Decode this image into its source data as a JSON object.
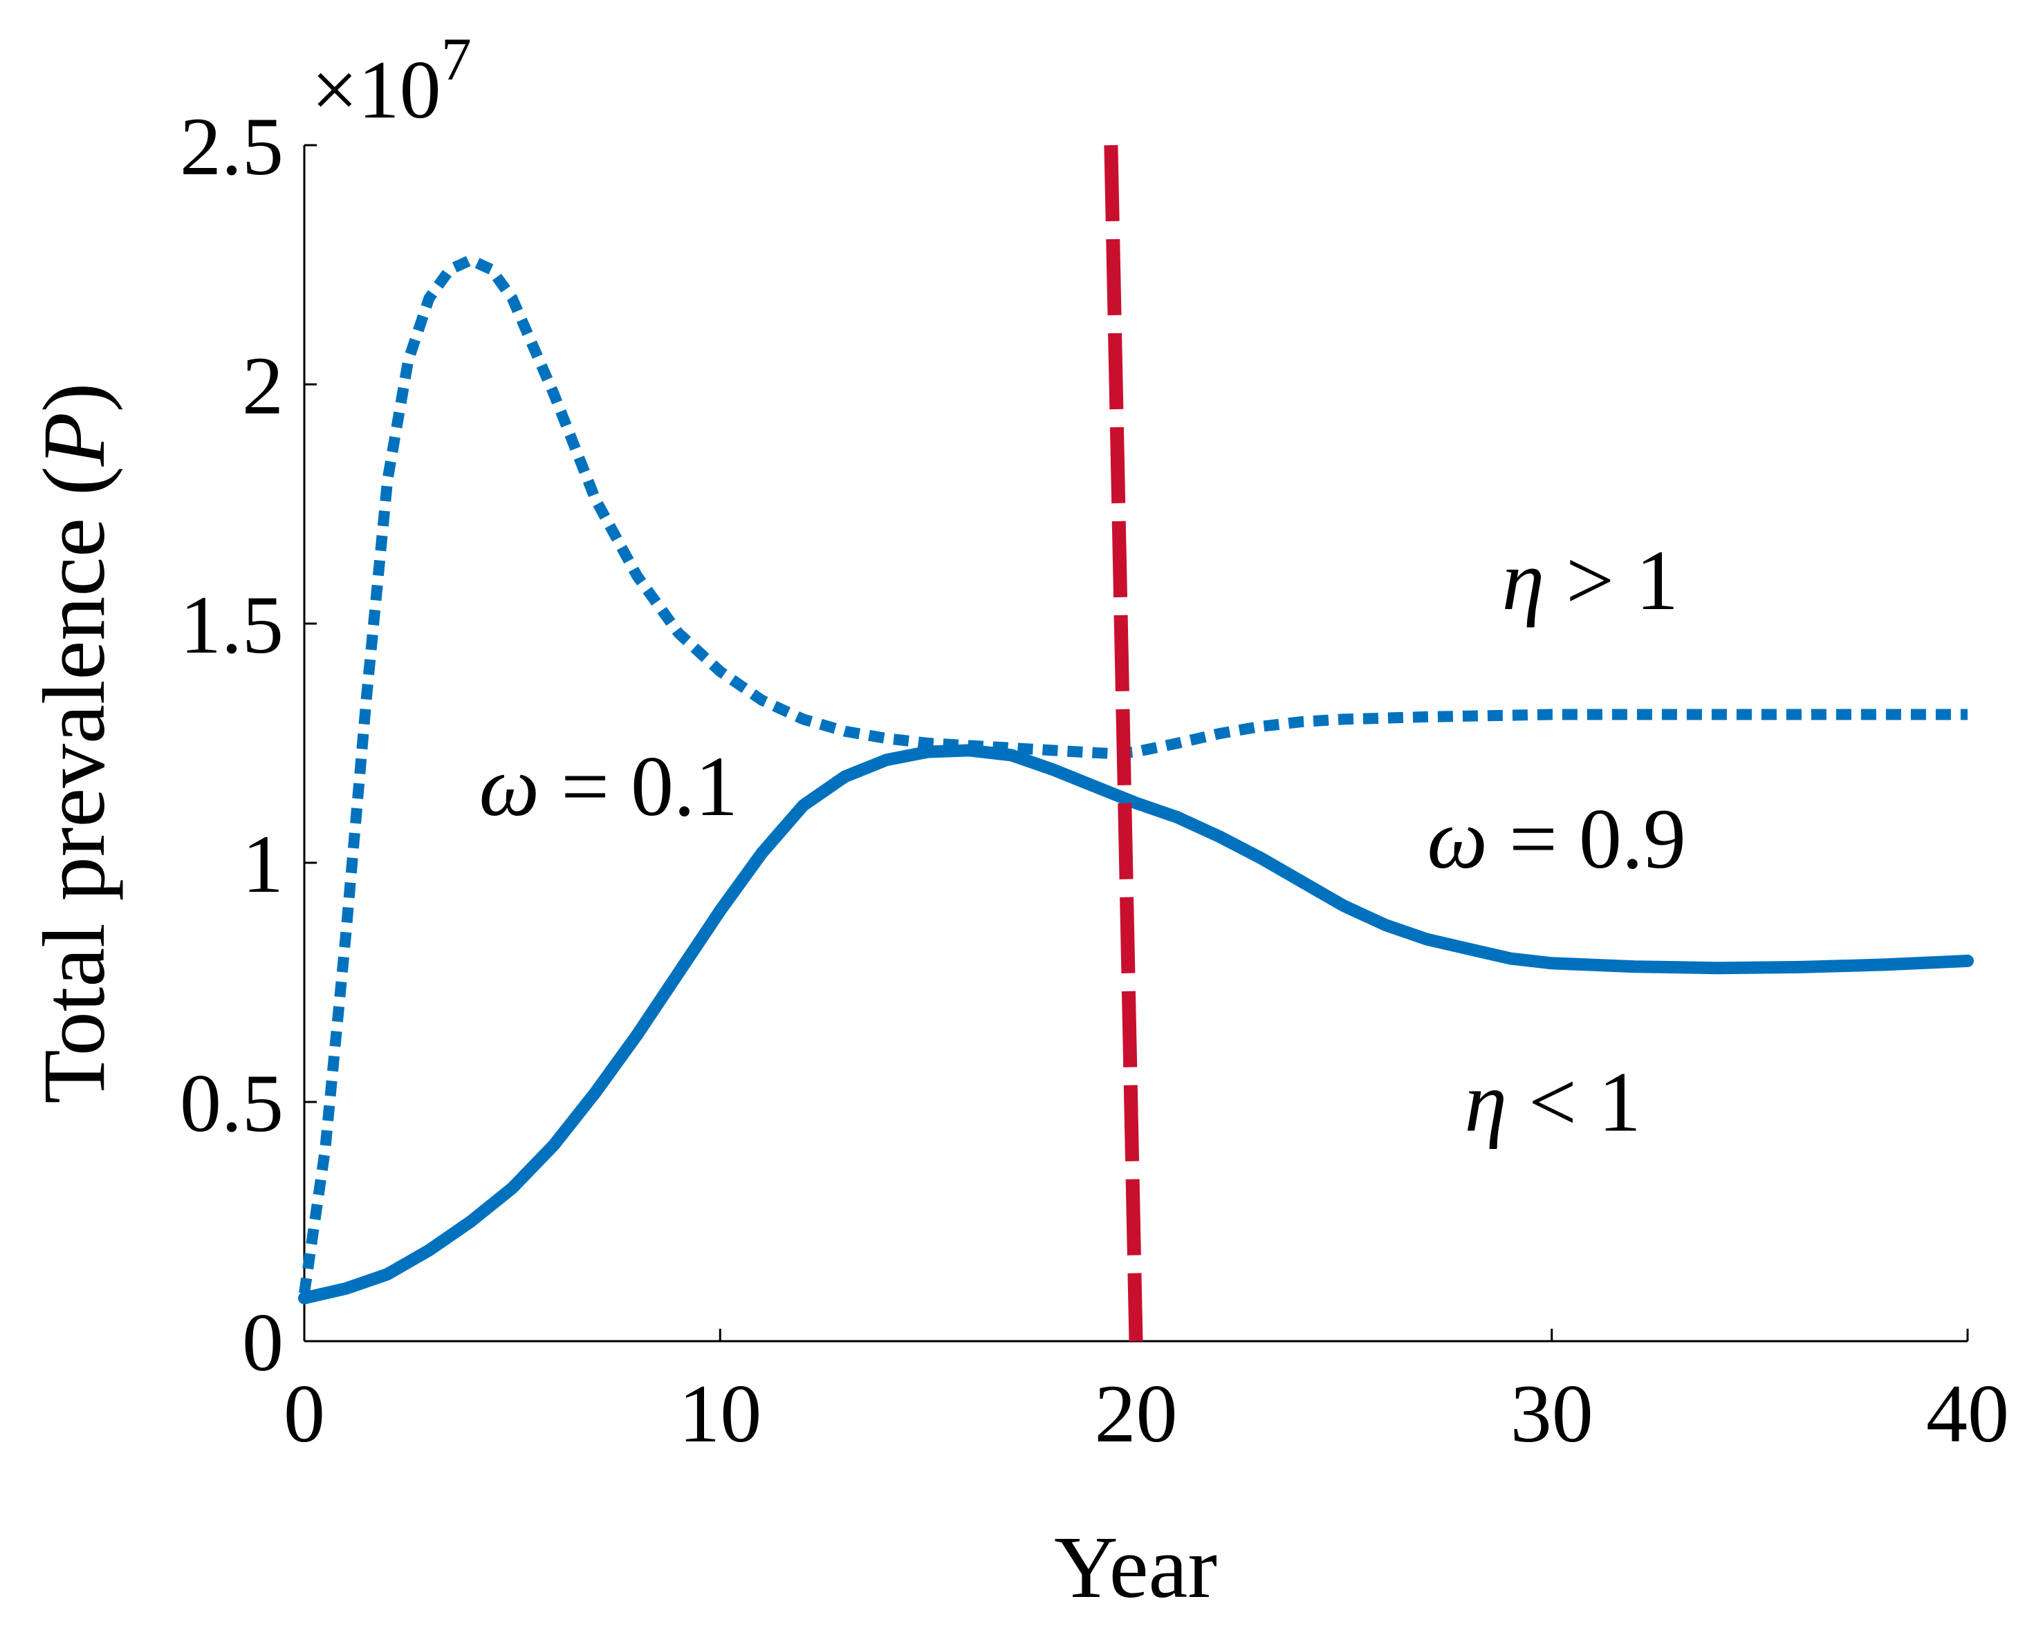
{
  "chart_data": {
    "type": "line",
    "title": "",
    "xlabel": "Year",
    "ylabel_main": "Total prevalence (",
    "ylabel_var": "P",
    "ylabel_end": ")",
    "y_exponent_base": "×10",
    "y_exponent_power": "7",
    "xlim": [
      0,
      40
    ],
    "ylim": [
      0,
      2.5
    ],
    "xticks": [
      0,
      10,
      20,
      30,
      40
    ],
    "xtick_labels": [
      "0",
      "10",
      "20",
      "30",
      "40"
    ],
    "yticks": [
      0,
      0.5,
      1,
      1.5,
      2,
      2.5
    ],
    "ytick_labels": [
      "0",
      "0.5",
      "1",
      "1.5",
      "2",
      "2.5"
    ],
    "grid": false,
    "series": [
      {
        "style": "dotted",
        "color": "#0072BD",
        "points": [
          [
            0,
            0.1
          ],
          [
            0.5,
            0.4
          ],
          [
            1,
            0.85
          ],
          [
            1.5,
            1.35
          ],
          [
            2,
            1.8
          ],
          [
            2.5,
            2.05
          ],
          [
            3,
            2.18
          ],
          [
            3.5,
            2.24
          ],
          [
            4,
            2.26
          ],
          [
            4.5,
            2.24
          ],
          [
            5,
            2.18
          ],
          [
            6,
            1.98
          ],
          [
            7,
            1.76
          ],
          [
            8,
            1.6
          ],
          [
            9,
            1.48
          ],
          [
            10,
            1.4
          ],
          [
            11,
            1.34
          ],
          [
            12,
            1.3
          ],
          [
            13,
            1.275
          ],
          [
            14,
            1.26
          ],
          [
            15,
            1.25
          ],
          [
            16,
            1.245
          ],
          [
            17,
            1.24
          ],
          [
            18,
            1.235
          ],
          [
            19,
            1.23
          ],
          [
            19.5,
            1.228
          ],
          [
            20,
            1.232
          ],
          [
            21,
            1.25
          ],
          [
            22,
            1.27
          ],
          [
            23,
            1.285
          ],
          [
            24,
            1.295
          ],
          [
            25,
            1.3
          ],
          [
            27,
            1.305
          ],
          [
            30,
            1.31
          ],
          [
            35,
            1.31
          ],
          [
            40,
            1.31
          ]
        ]
      },
      {
        "style": "solid",
        "color": "#0072BD",
        "points": [
          [
            0,
            0.09
          ],
          [
            1,
            0.11
          ],
          [
            2,
            0.14
          ],
          [
            3,
            0.19
          ],
          [
            4,
            0.25
          ],
          [
            5,
            0.32
          ],
          [
            6,
            0.41
          ],
          [
            7,
            0.52
          ],
          [
            8,
            0.64
          ],
          [
            9,
            0.77
          ],
          [
            10,
            0.9
          ],
          [
            11,
            1.02
          ],
          [
            12,
            1.12
          ],
          [
            13,
            1.18
          ],
          [
            14,
            1.215
          ],
          [
            15,
            1.232
          ],
          [
            16,
            1.235
          ],
          [
            17,
            1.225
          ],
          [
            18,
            1.195
          ],
          [
            19,
            1.16
          ],
          [
            20,
            1.125
          ],
          [
            21,
            1.095
          ],
          [
            22,
            1.055
          ],
          [
            23,
            1.01
          ],
          [
            24,
            0.96
          ],
          [
            25,
            0.91
          ],
          [
            26,
            0.87
          ],
          [
            27,
            0.84
          ],
          [
            28,
            0.82
          ],
          [
            29,
            0.8
          ],
          [
            30,
            0.79
          ],
          [
            32,
            0.783
          ],
          [
            34,
            0.78
          ],
          [
            36,
            0.782
          ],
          [
            38,
            0.787
          ],
          [
            40,
            0.795
          ]
        ]
      },
      {
        "style": "dashed",
        "color": "#C8102E",
        "points": [
          [
            19.4,
            2.5
          ],
          [
            20,
            0
          ]
        ]
      }
    ],
    "annotations": [
      {
        "id": "omega-low",
        "symbol": "ω",
        "text": " = 0.1",
        "x": 4.2,
        "y": 1.1
      },
      {
        "id": "omega-high",
        "symbol": "ω",
        "text": " = 0.9",
        "x": 27.0,
        "y": 0.99
      },
      {
        "id": "eta-greater",
        "symbol": "η",
        "text": " > 1",
        "x": 28.8,
        "y": 1.53
      },
      {
        "id": "eta-less",
        "symbol": "η",
        "text": " < 1",
        "x": 27.9,
        "y": 0.44
      }
    ]
  }
}
